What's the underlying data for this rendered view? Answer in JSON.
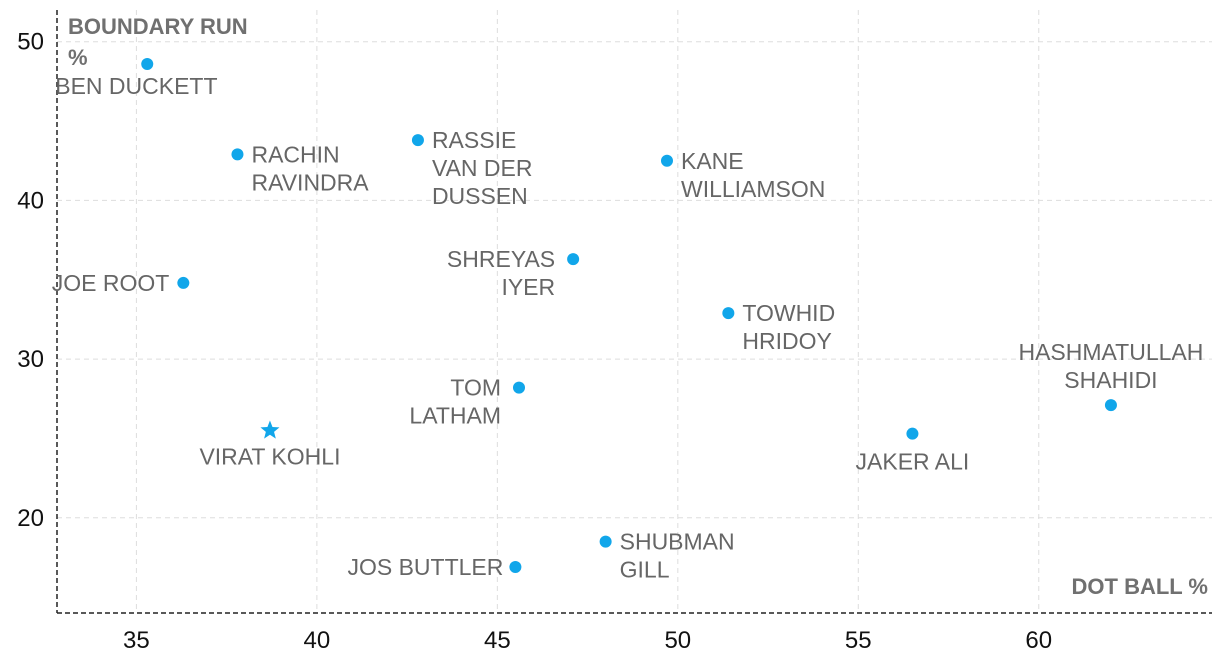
{
  "chart_data": {
    "type": "scatter",
    "xlabel": "DOT BALL %",
    "ylabel": "BOUNDARY RUN %",
    "xlim": [
      32.8,
      64.8
    ],
    "ylim": [
      14,
      52
    ],
    "xticks": [
      35,
      40,
      45,
      50,
      55,
      60
    ],
    "yticks": [
      20,
      30,
      40,
      50
    ],
    "grid": true,
    "color": "#11a6ea",
    "points": [
      {
        "name": "BEN DUCKETT",
        "x": 35.3,
        "y": 48.6,
        "marker": "circle"
      },
      {
        "name": "RACHIN RAVINDRA",
        "x": 37.8,
        "y": 42.9,
        "marker": "circle"
      },
      {
        "name": "RASSIE VAN DER DUSSEN",
        "x": 42.8,
        "y": 43.8,
        "marker": "circle"
      },
      {
        "name": "KANE WILLIAMSON",
        "x": 49.7,
        "y": 42.5,
        "marker": "circle"
      },
      {
        "name": "SHREYAS IYER",
        "x": 47.1,
        "y": 36.3,
        "marker": "circle"
      },
      {
        "name": "JOE ROOT",
        "x": 36.3,
        "y": 34.8,
        "marker": "circle"
      },
      {
        "name": "TOWHID HRIDOY",
        "x": 51.4,
        "y": 32.9,
        "marker": "circle"
      },
      {
        "name": "HASHMATULLAH SHAHIDI",
        "x": 62.0,
        "y": 27.1,
        "marker": "circle"
      },
      {
        "name": "TOM LATHAM",
        "x": 45.6,
        "y": 28.2,
        "marker": "circle"
      },
      {
        "name": "VIRAT KOHLI",
        "x": 38.7,
        "y": 25.5,
        "marker": "star"
      },
      {
        "name": "JAKER ALI",
        "x": 56.5,
        "y": 25.3,
        "marker": "circle"
      },
      {
        "name": "SHUBMAN GILL",
        "x": 48.0,
        "y": 18.5,
        "marker": "circle"
      },
      {
        "name": "JOS BUTTLER",
        "x": 45.5,
        "y": 16.9,
        "marker": "circle"
      }
    ]
  }
}
